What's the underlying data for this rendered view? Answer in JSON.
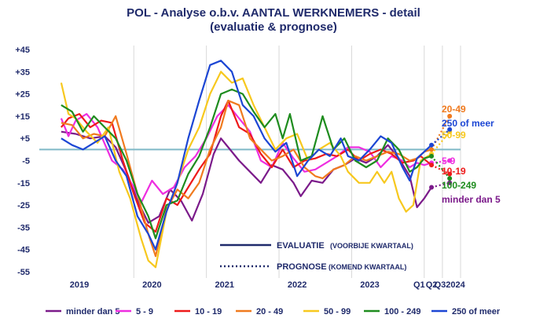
{
  "chart_data": {
    "type": "line",
    "title": "POL - Analyse o.b.v. AANTAL WERKNEMERS - detail",
    "subtitle": "(evaluatie & prognose)",
    "ylim": [
      -55,
      50
    ],
    "yticks": [
      "+45",
      "+35",
      "+25",
      "+15",
      "+5",
      "-5",
      "-15",
      "-25",
      "-35",
      "-45",
      "-55"
    ],
    "ytick_values": [
      45,
      35,
      25,
      15,
      5,
      -5,
      -15,
      -25,
      -35,
      -45,
      -55
    ],
    "reference_line": 0,
    "xtick_labels": [
      {
        "label": "2019",
        "x": 2019.25
      },
      {
        "label": "2020",
        "x": 2020.25
      },
      {
        "label": "2021",
        "x": 2021.25
      },
      {
        "label": "2022",
        "x": 2022.25
      },
      {
        "label": "2023",
        "x": 2023.25
      },
      {
        "label": "Q1",
        "x": 2023.93
      },
      {
        "label": "Q2",
        "x": 2024.1
      },
      {
        "label": "Q32024",
        "x": 2024.35
      }
    ],
    "vgrid": [
      2020,
      2021,
      2022,
      2023,
      2024,
      2024.25,
      2024.5
    ],
    "legend_key": {
      "evaluatie": "EVALUATIE",
      "evaluatie_sub": "(VOORBIJE KWARTAAL)",
      "prognose": "PROGNOSE",
      "prognose_sub": "(KOMEND KWARTAAL)"
    },
    "series": [
      {
        "name": "minder dan 5",
        "end_label": "minder dan 5",
        "color": "#7b1a8a",
        "points": [
          [
            2019.0,
            8
          ],
          [
            2019.2,
            7
          ],
          [
            2019.4,
            5
          ],
          [
            2019.6,
            6
          ],
          [
            2019.75,
            1
          ],
          [
            2019.9,
            -10
          ],
          [
            2020.05,
            -23
          ],
          [
            2020.2,
            -33
          ],
          [
            2020.35,
            -30
          ],
          [
            2020.5,
            -18
          ],
          [
            2020.65,
            -23
          ],
          [
            2020.8,
            -32
          ],
          [
            2020.95,
            -20
          ],
          [
            2021.1,
            -2
          ],
          [
            2021.2,
            5
          ],
          [
            2021.3,
            1
          ],
          [
            2021.45,
            -5
          ],
          [
            2021.6,
            -10
          ],
          [
            2021.75,
            -15
          ],
          [
            2021.9,
            -7
          ],
          [
            2022.05,
            -9
          ],
          [
            2022.2,
            -15
          ],
          [
            2022.3,
            -21
          ],
          [
            2022.45,
            -14
          ],
          [
            2022.6,
            -15
          ],
          [
            2022.75,
            -9
          ],
          [
            2022.9,
            -7
          ],
          [
            2023.05,
            -4
          ],
          [
            2023.2,
            -6
          ],
          [
            2023.35,
            -3
          ],
          [
            2023.5,
            2
          ],
          [
            2023.65,
            -4
          ],
          [
            2023.8,
            -12
          ],
          [
            2023.9,
            -26
          ],
          [
            2024.0,
            -22
          ],
          [
            2024.1,
            -17
          ]
        ],
        "forecast": [
          [
            2024.1,
            -17
          ],
          [
            2024.35,
            -15
          ]
        ]
      },
      {
        "name": "5 - 9",
        "end_label": "5-9",
        "color": "#ee2ee0",
        "points": [
          [
            2019.0,
            14
          ],
          [
            2019.1,
            6
          ],
          [
            2019.2,
            13
          ],
          [
            2019.35,
            16
          ],
          [
            2019.5,
            10
          ],
          [
            2019.7,
            -5
          ],
          [
            2019.85,
            -9
          ],
          [
            2020.0,
            -17
          ],
          [
            2020.1,
            -24
          ],
          [
            2020.25,
            -14
          ],
          [
            2020.4,
            -20
          ],
          [
            2020.55,
            -17
          ],
          [
            2020.7,
            -8
          ],
          [
            2020.85,
            -3
          ],
          [
            2021.0,
            5
          ],
          [
            2021.15,
            15
          ],
          [
            2021.3,
            20
          ],
          [
            2021.45,
            14
          ],
          [
            2021.6,
            8
          ],
          [
            2021.75,
            -5
          ],
          [
            2021.9,
            -8
          ],
          [
            2022.05,
            3
          ],
          [
            2022.2,
            -4
          ],
          [
            2022.35,
            -10
          ],
          [
            2022.5,
            -9
          ],
          [
            2022.65,
            -6
          ],
          [
            2022.8,
            -3
          ],
          [
            2022.95,
            1
          ],
          [
            2023.1,
            1
          ],
          [
            2023.25,
            -1
          ],
          [
            2023.4,
            -8
          ],
          [
            2023.55,
            -3
          ],
          [
            2023.7,
            -5
          ],
          [
            2023.8,
            -8
          ],
          [
            2023.9,
            -6
          ],
          [
            2024.0,
            -7
          ],
          [
            2024.1,
            -6
          ]
        ],
        "forecast": [
          [
            2024.1,
            -6
          ],
          [
            2024.35,
            -5
          ]
        ]
      },
      {
        "name": "10 - 19",
        "end_label": "10-19",
        "color": "#ee1a1a",
        "points": [
          [
            2019.0,
            10
          ],
          [
            2019.1,
            14
          ],
          [
            2019.25,
            16
          ],
          [
            2019.4,
            10
          ],
          [
            2019.55,
            13
          ],
          [
            2019.7,
            12
          ],
          [
            2019.85,
            -5
          ],
          [
            2020.0,
            -20
          ],
          [
            2020.15,
            -33
          ],
          [
            2020.3,
            -37
          ],
          [
            2020.45,
            -22
          ],
          [
            2020.6,
            -25
          ],
          [
            2020.75,
            -17
          ],
          [
            2020.9,
            -9
          ],
          [
            2021.05,
            -2
          ],
          [
            2021.2,
            15
          ],
          [
            2021.3,
            22
          ],
          [
            2021.45,
            10
          ],
          [
            2021.6,
            7
          ],
          [
            2021.75,
            -2
          ],
          [
            2021.9,
            -8
          ],
          [
            2022.05,
            0
          ],
          [
            2022.2,
            -8
          ],
          [
            2022.35,
            -5
          ],
          [
            2022.5,
            -4
          ],
          [
            2022.65,
            -2
          ],
          [
            2022.8,
            -3
          ],
          [
            2022.95,
            0
          ],
          [
            2023.1,
            -5
          ],
          [
            2023.25,
            -2
          ],
          [
            2023.4,
            0
          ],
          [
            2023.55,
            -2
          ],
          [
            2023.7,
            -6
          ],
          [
            2023.85,
            -5
          ],
          [
            2023.95,
            -3
          ],
          [
            2024.1,
            -7
          ]
        ],
        "forecast": [
          [
            2024.1,
            -7
          ],
          [
            2024.35,
            -11
          ]
        ]
      },
      {
        "name": "20 - 49",
        "end_label": "20-49",
        "color": "#f07a1e",
        "points": [
          [
            2019.0,
            12
          ],
          [
            2019.15,
            11
          ],
          [
            2019.3,
            5
          ],
          [
            2019.45,
            7
          ],
          [
            2019.6,
            6
          ],
          [
            2019.75,
            15
          ],
          [
            2019.9,
            -2
          ],
          [
            2020.05,
            -20
          ],
          [
            2020.2,
            -38
          ],
          [
            2020.3,
            -48
          ],
          [
            2020.45,
            -27
          ],
          [
            2020.6,
            -18
          ],
          [
            2020.75,
            -22
          ],
          [
            2020.9,
            -15
          ],
          [
            2021.05,
            0
          ],
          [
            2021.2,
            10
          ],
          [
            2021.3,
            22
          ],
          [
            2021.45,
            20
          ],
          [
            2021.6,
            5
          ],
          [
            2021.75,
            0
          ],
          [
            2021.9,
            -5
          ],
          [
            2022.05,
            -3
          ],
          [
            2022.2,
            0
          ],
          [
            2022.35,
            -8
          ],
          [
            2022.5,
            -12
          ],
          [
            2022.6,
            -13
          ],
          [
            2022.75,
            -9
          ],
          [
            2022.9,
            -7
          ],
          [
            2023.05,
            -3
          ],
          [
            2023.2,
            -5
          ],
          [
            2023.35,
            -3
          ],
          [
            2023.5,
            -1
          ],
          [
            2023.65,
            -2
          ],
          [
            2023.8,
            -5
          ],
          [
            2023.9,
            -4
          ],
          [
            2024.0,
            -1
          ],
          [
            2024.1,
            0
          ]
        ],
        "forecast": [
          [
            2024.1,
            0
          ],
          [
            2024.35,
            15
          ]
        ]
      },
      {
        "name": "50 - 99",
        "end_label": "50-99",
        "color": "#f7c81e",
        "points": [
          [
            2019.0,
            30
          ],
          [
            2019.1,
            16
          ],
          [
            2019.2,
            14
          ],
          [
            2019.35,
            8
          ],
          [
            2019.5,
            3
          ],
          [
            2019.65,
            10
          ],
          [
            2019.8,
            -10
          ],
          [
            2019.95,
            -22
          ],
          [
            2020.1,
            -40
          ],
          [
            2020.2,
            -50
          ],
          [
            2020.3,
            -53
          ],
          [
            2020.45,
            -28
          ],
          [
            2020.6,
            -15
          ],
          [
            2020.75,
            0
          ],
          [
            2020.9,
            10
          ],
          [
            2021.05,
            25
          ],
          [
            2021.2,
            35
          ],
          [
            2021.35,
            30
          ],
          [
            2021.5,
            32
          ],
          [
            2021.65,
            20
          ],
          [
            2021.8,
            10
          ],
          [
            2021.95,
            0
          ],
          [
            2022.1,
            5
          ],
          [
            2022.25,
            7
          ],
          [
            2022.4,
            -5
          ],
          [
            2022.55,
            0
          ],
          [
            2022.7,
            3
          ],
          [
            2022.85,
            -3
          ],
          [
            2022.95,
            -10
          ],
          [
            2023.1,
            -15
          ],
          [
            2023.25,
            -15
          ],
          [
            2023.35,
            -10
          ],
          [
            2023.45,
            -15
          ],
          [
            2023.55,
            -10
          ],
          [
            2023.65,
            -22
          ],
          [
            2023.75,
            -28
          ],
          [
            2023.85,
            -25
          ],
          [
            2023.95,
            -5
          ],
          [
            2024.1,
            -2
          ]
        ],
        "forecast": [
          [
            2024.1,
            -2
          ],
          [
            2024.35,
            8
          ]
        ]
      },
      {
        "name": "100 - 249",
        "end_label": "100-249",
        "color": "#1e8c1e",
        "points": [
          [
            2019.0,
            20
          ],
          [
            2019.15,
            17
          ],
          [
            2019.3,
            8
          ],
          [
            2019.45,
            15
          ],
          [
            2019.6,
            10
          ],
          [
            2019.75,
            5
          ],
          [
            2019.9,
            -5
          ],
          [
            2020.05,
            -20
          ],
          [
            2020.2,
            -30
          ],
          [
            2020.3,
            -40
          ],
          [
            2020.45,
            -25
          ],
          [
            2020.6,
            -23
          ],
          [
            2020.75,
            -11
          ],
          [
            2020.9,
            -3
          ],
          [
            2021.05,
            10
          ],
          [
            2021.2,
            25
          ],
          [
            2021.35,
            27
          ],
          [
            2021.5,
            25
          ],
          [
            2021.65,
            17
          ],
          [
            2021.8,
            10
          ],
          [
            2021.95,
            16
          ],
          [
            2022.05,
            5
          ],
          [
            2022.15,
            16
          ],
          [
            2022.3,
            -5
          ],
          [
            2022.45,
            -3
          ],
          [
            2022.6,
            15
          ],
          [
            2022.75,
            0
          ],
          [
            2022.9,
            5
          ],
          [
            2023.05,
            -5
          ],
          [
            2023.2,
            -8
          ],
          [
            2023.35,
            -5
          ],
          [
            2023.5,
            5
          ],
          [
            2023.65,
            0
          ],
          [
            2023.8,
            -10
          ],
          [
            2023.9,
            -8
          ],
          [
            2024.0,
            -4
          ],
          [
            2024.1,
            -3
          ]
        ],
        "forecast": [
          [
            2024.1,
            -3
          ],
          [
            2024.35,
            -13
          ]
        ]
      },
      {
        "name": "250 of meer",
        "end_label": "250 of meer",
        "color": "#1c46d4",
        "points": [
          [
            2019.0,
            5
          ],
          [
            2019.15,
            2
          ],
          [
            2019.3,
            0
          ],
          [
            2019.45,
            3
          ],
          [
            2019.6,
            6
          ],
          [
            2019.75,
            -5
          ],
          [
            2019.9,
            -12
          ],
          [
            2020.05,
            -30
          ],
          [
            2020.2,
            -38
          ],
          [
            2020.3,
            -45
          ],
          [
            2020.45,
            -28
          ],
          [
            2020.6,
            -15
          ],
          [
            2020.75,
            5
          ],
          [
            2020.9,
            22
          ],
          [
            2021.05,
            38
          ],
          [
            2021.2,
            40
          ],
          [
            2021.35,
            35
          ],
          [
            2021.5,
            20
          ],
          [
            2021.65,
            15
          ],
          [
            2021.8,
            5
          ],
          [
            2021.95,
            -1
          ],
          [
            2022.1,
            3
          ],
          [
            2022.25,
            -12
          ],
          [
            2022.4,
            -5
          ],
          [
            2022.55,
            0
          ],
          [
            2022.7,
            -3
          ],
          [
            2022.85,
            5
          ],
          [
            2022.95,
            -3
          ],
          [
            2023.1,
            -5
          ],
          [
            2023.25,
            0
          ],
          [
            2023.4,
            6
          ],
          [
            2023.55,
            3
          ],
          [
            2023.7,
            -8
          ],
          [
            2023.8,
            -14
          ],
          [
            2023.9,
            -4
          ],
          [
            2024.0,
            -1
          ],
          [
            2024.1,
            2
          ]
        ],
        "forecast": [
          [
            2024.1,
            2
          ],
          [
            2024.35,
            9
          ]
        ]
      }
    ]
  }
}
